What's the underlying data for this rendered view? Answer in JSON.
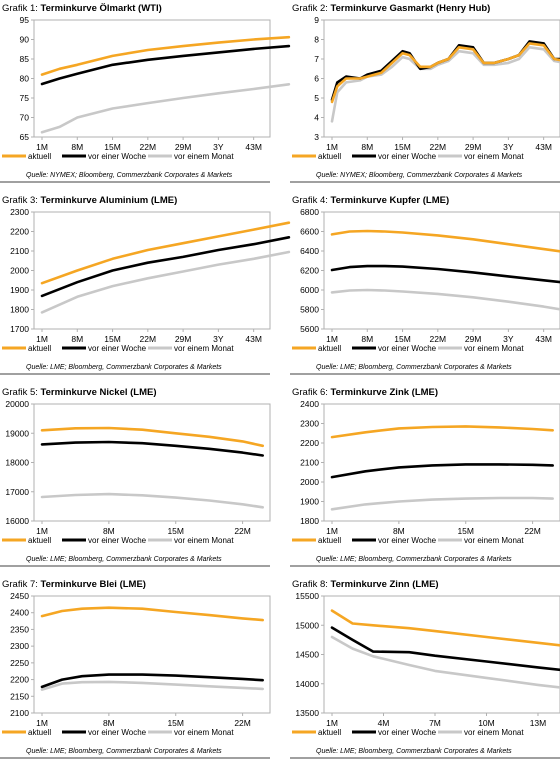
{
  "colors": {
    "aktuell": "#f5a623",
    "woche": "#000000",
    "monat": "#c8c8c8",
    "frame": "#b0b0b0",
    "rule": "#000000"
  },
  "legend": [
    "aktuell",
    "vor einer Woche",
    "vor einem Monat"
  ],
  "chart_data": [
    {
      "type": "line",
      "title_prefix": "Grafik 1:",
      "title": "Terminkurve Ölmarkt (WTI)",
      "categories": [
        "1M",
        "8M",
        "15M",
        "22M",
        "29M",
        "3Y",
        "43M"
      ],
      "ylim": [
        65,
        95
      ],
      "yticks": [
        65,
        70,
        75,
        80,
        85,
        90,
        95
      ],
      "source": "Quelle: NYMEX; Bloomberg, Commerzbank Corporates & Markets",
      "series": [
        {
          "name": "aktuell",
          "x": [
            0,
            0.5,
            1,
            2,
            3,
            4,
            5,
            6,
            7
          ],
          "values": [
            81,
            82.5,
            83.5,
            85.8,
            87.3,
            88.3,
            89.2,
            90,
            90.6
          ]
        },
        {
          "name": "vor einer Woche",
          "x": [
            0,
            0.5,
            1,
            2,
            3,
            4,
            5,
            6,
            7
          ],
          "values": [
            78.6,
            80,
            81.2,
            83.5,
            84.8,
            85.8,
            86.7,
            87.6,
            88.3
          ]
        },
        {
          "name": "vor einem Monat",
          "x": [
            0,
            0.5,
            1,
            2,
            3,
            4,
            5,
            6,
            7
          ],
          "values": [
            66.2,
            67.6,
            70,
            72.3,
            73.7,
            75,
            76.2,
            77.3,
            78.5
          ]
        }
      ]
    },
    {
      "type": "line",
      "title_prefix": "Grafik 2:",
      "title": "Terminkurve Gasmarkt (Henry Hub)",
      "categories": [
        "1M",
        "8M",
        "15M",
        "22M",
        "29M",
        "3Y",
        "43M"
      ],
      "ylim": [
        3,
        9
      ],
      "yticks": [
        3,
        4,
        5,
        6,
        7,
        8,
        9
      ],
      "source": "Quelle: NYMEX; Bloomberg, Commerzbank Corporates & Markets",
      "series": [
        {
          "name": "aktuell",
          "x": [
            0,
            0.15,
            0.4,
            0.8,
            1,
            1.4,
            1.7,
            2,
            2.2,
            2.5,
            2.8,
            3,
            3.3,
            3.6,
            4,
            4.3,
            4.6,
            5,
            5.3,
            5.6,
            6,
            6.3,
            6.6,
            7
          ],
          "values": [
            4.8,
            5.6,
            6,
            6,
            6.1,
            6.3,
            6.8,
            7.3,
            7.2,
            6.6,
            6.6,
            6.8,
            7,
            7.6,
            7.5,
            6.8,
            6.8,
            7,
            7.2,
            7.8,
            7.7,
            7,
            6.9,
            7.1
          ]
        },
        {
          "name": "vor einer Woche",
          "x": [
            0,
            0.15,
            0.4,
            0.8,
            1,
            1.4,
            1.7,
            2,
            2.2,
            2.5,
            2.8,
            3,
            3.3,
            3.6,
            4,
            4.3,
            4.6,
            5,
            5.3,
            5.6,
            6,
            6.3,
            6.6,
            7
          ],
          "values": [
            4.9,
            5.8,
            6.1,
            6,
            6.2,
            6.4,
            6.9,
            7.4,
            7.3,
            6.5,
            6.6,
            6.8,
            7,
            7.7,
            7.6,
            6.8,
            6.8,
            7,
            7.2,
            7.9,
            7.8,
            7,
            7,
            7.2
          ]
        },
        {
          "name": "vor einem Monat",
          "x": [
            0,
            0.15,
            0.4,
            0.8,
            1,
            1.4,
            1.7,
            2,
            2.2,
            2.5,
            2.8,
            3,
            3.3,
            3.6,
            4,
            4.3,
            4.6,
            5,
            5.3,
            5.6,
            6,
            6.3,
            6.6,
            7
          ],
          "values": [
            3.8,
            5.3,
            5.8,
            5.9,
            6.1,
            6.2,
            6.6,
            7.1,
            7,
            6.5,
            6.5,
            6.7,
            6.9,
            7.4,
            7.3,
            6.7,
            6.7,
            6.8,
            7,
            7.6,
            7.5,
            6.9,
            6.8,
            7
          ]
        }
      ]
    },
    {
      "type": "line",
      "title_prefix": "Grafik 3:",
      "title": "Terminkurve Aluminium (LME)",
      "categories": [
        "1M",
        "8M",
        "15M",
        "22M",
        "29M",
        "3Y",
        "43M"
      ],
      "ylim": [
        1700,
        2300
      ],
      "yticks": [
        1700,
        1800,
        1900,
        2000,
        2100,
        2200,
        2300
      ],
      "source": "Quelle: LME; Bloomberg, Commerzbank Corporates & Markets",
      "series": [
        {
          "name": "aktuell",
          "x": [
            0,
            1,
            2,
            3,
            4,
            5,
            6,
            7
          ],
          "values": [
            1935,
            2000,
            2060,
            2105,
            2140,
            2175,
            2210,
            2245
          ]
        },
        {
          "name": "vor einer Woche",
          "x": [
            0,
            1,
            2,
            3,
            4,
            5,
            6,
            7
          ],
          "values": [
            1870,
            1940,
            2000,
            2040,
            2070,
            2105,
            2135,
            2170
          ]
        },
        {
          "name": "vor einem Monat",
          "x": [
            0,
            1,
            2,
            3,
            4,
            5,
            6,
            7
          ],
          "values": [
            1785,
            1865,
            1920,
            1960,
            1995,
            2030,
            2060,
            2095
          ]
        }
      ]
    },
    {
      "type": "line",
      "title_prefix": "Grafik 4:",
      "title": "Terminkurve Kupfer (LME)",
      "categories": [
        "1M",
        "8M",
        "15M",
        "22M",
        "29M",
        "3Y",
        "43M"
      ],
      "ylim": [
        5600,
        6800
      ],
      "yticks": [
        5600,
        5800,
        6000,
        6200,
        6400,
        6600,
        6800
      ],
      "source": "Quelle: LME; Bloomberg, Commerzbank Corporates & Markets",
      "series": [
        {
          "name": "aktuell",
          "x": [
            0,
            0.5,
            1,
            1.5,
            2,
            3,
            4,
            5,
            6,
            7
          ],
          "values": [
            6570,
            6600,
            6605,
            6600,
            6590,
            6560,
            6520,
            6470,
            6420,
            6370
          ]
        },
        {
          "name": "vor einer Woche",
          "x": [
            0,
            0.5,
            1,
            1.5,
            2,
            3,
            4,
            5,
            6,
            7
          ],
          "values": [
            6205,
            6235,
            6245,
            6245,
            6240,
            6215,
            6180,
            6140,
            6100,
            6060
          ]
        },
        {
          "name": "vor einem Monat",
          "x": [
            0,
            0.5,
            1,
            1.5,
            2,
            3,
            4,
            5,
            6,
            7
          ],
          "values": [
            5975,
            5995,
            6000,
            5995,
            5985,
            5960,
            5925,
            5880,
            5830,
            5770
          ]
        }
      ]
    },
    {
      "type": "line",
      "title_prefix": "Grafik 5:",
      "title": "Terminkurve Nickel (LME)",
      "categories": [
        "1M",
        "8M",
        "15M",
        "22M"
      ],
      "ylim": [
        16000,
        20000
      ],
      "yticks": [
        16000,
        17000,
        18000,
        19000,
        20000
      ],
      "source": "Quelle: LME; Bloomberg, Commerzbank Corporates & Markets",
      "series": [
        {
          "name": "aktuell",
          "x": [
            0,
            0.5,
            1,
            1.5,
            2,
            2.5,
            3,
            3.3
          ],
          "values": [
            19100,
            19170,
            19180,
            19120,
            19000,
            18880,
            18720,
            18570
          ]
        },
        {
          "name": "vor einer Woche",
          "x": [
            0,
            0.5,
            1,
            1.5,
            2,
            2.5,
            3,
            3.3
          ],
          "values": [
            18620,
            18680,
            18700,
            18660,
            18570,
            18470,
            18340,
            18240
          ]
        },
        {
          "name": "vor einem Monat",
          "x": [
            0,
            0.5,
            1,
            1.5,
            2,
            2.5,
            3,
            3.3
          ],
          "values": [
            16820,
            16890,
            16920,
            16880,
            16800,
            16700,
            16570,
            16470
          ]
        }
      ]
    },
    {
      "type": "line",
      "title_prefix": "Grafik 6:",
      "title": "Terminkurve Zink (LME)",
      "categories": [
        "1M",
        "8M",
        "15M",
        "22M"
      ],
      "ylim": [
        1800,
        2400
      ],
      "yticks": [
        1800,
        1900,
        2000,
        2100,
        2200,
        2300,
        2400
      ],
      "source": "Quelle: LME; Bloomberg, Commerzbank Corporates & Markets",
      "series": [
        {
          "name": "aktuell",
          "x": [
            0,
            0.5,
            1,
            1.5,
            2,
            2.5,
            3,
            3.3
          ],
          "values": [
            2230,
            2255,
            2275,
            2282,
            2285,
            2280,
            2272,
            2265
          ]
        },
        {
          "name": "vor einer Woche",
          "x": [
            0,
            0.5,
            1,
            1.5,
            2,
            2.5,
            3,
            3.3
          ],
          "values": [
            2025,
            2055,
            2075,
            2085,
            2090,
            2090,
            2088,
            2085
          ]
        },
        {
          "name": "vor einem Monat",
          "x": [
            0,
            0.5,
            1,
            1.5,
            2,
            2.5,
            3,
            3.3
          ],
          "values": [
            1860,
            1885,
            1900,
            1910,
            1915,
            1918,
            1918,
            1915
          ]
        }
      ]
    },
    {
      "type": "line",
      "title_prefix": "Grafik 7:",
      "title": "Terminkurve Blei (LME)",
      "categories": [
        "1M",
        "8M",
        "15M",
        "22M"
      ],
      "ylim": [
        2100,
        2450
      ],
      "yticks": [
        2100,
        2150,
        2200,
        2250,
        2300,
        2350,
        2400,
        2450
      ],
      "source": "Quelle: LME; Bloomberg, Commerzbank Corporates & Markets",
      "series": [
        {
          "name": "aktuell",
          "x": [
            0,
            0.3,
            0.6,
            1,
            1.5,
            2,
            2.5,
            3,
            3.3
          ],
          "values": [
            2390,
            2405,
            2412,
            2415,
            2412,
            2402,
            2393,
            2383,
            2378
          ]
        },
        {
          "name": "vor einer Woche",
          "x": [
            0,
            0.3,
            0.6,
            1,
            1.5,
            2,
            2.5,
            3,
            3.3
          ],
          "values": [
            2178,
            2200,
            2210,
            2215,
            2215,
            2212,
            2207,
            2202,
            2198
          ]
        },
        {
          "name": "vor einem Monat",
          "x": [
            0,
            0.3,
            0.6,
            1,
            1.5,
            2,
            2.5,
            3,
            3.3
          ],
          "values": [
            2170,
            2188,
            2192,
            2193,
            2190,
            2185,
            2180,
            2175,
            2172
          ]
        }
      ]
    },
    {
      "type": "line",
      "title_prefix": "Grafik 8:",
      "title": "Terminkurve Zinn (LME)",
      "categories": [
        "1M",
        "4M",
        "7M",
        "10M",
        "13M"
      ],
      "ylim": [
        13500,
        15500
      ],
      "yticks": [
        13500,
        14000,
        14500,
        15000,
        15500
      ],
      "source": "Quelle: LME; Bloomberg, Commerzbank Corporates & Markets",
      "series": [
        {
          "name": "aktuell",
          "x": [
            0,
            0.4,
            0.8,
            1.5,
            2,
            3,
            4,
            4.8
          ],
          "values": [
            15250,
            15030,
            15000,
            14950,
            14900,
            14800,
            14700,
            14620
          ]
        },
        {
          "name": "vor einer Woche",
          "x": [
            0,
            0.4,
            0.8,
            1.5,
            2,
            3,
            4,
            4.8
          ],
          "values": [
            14960,
            14750,
            14550,
            14540,
            14480,
            14380,
            14280,
            14200
          ]
        },
        {
          "name": "vor einem Monat",
          "x": [
            0,
            0.4,
            0.8,
            1.5,
            2,
            3,
            4,
            4.8
          ],
          "values": [
            14800,
            14600,
            14470,
            14320,
            14220,
            14100,
            13980,
            13900
          ]
        }
      ]
    }
  ]
}
